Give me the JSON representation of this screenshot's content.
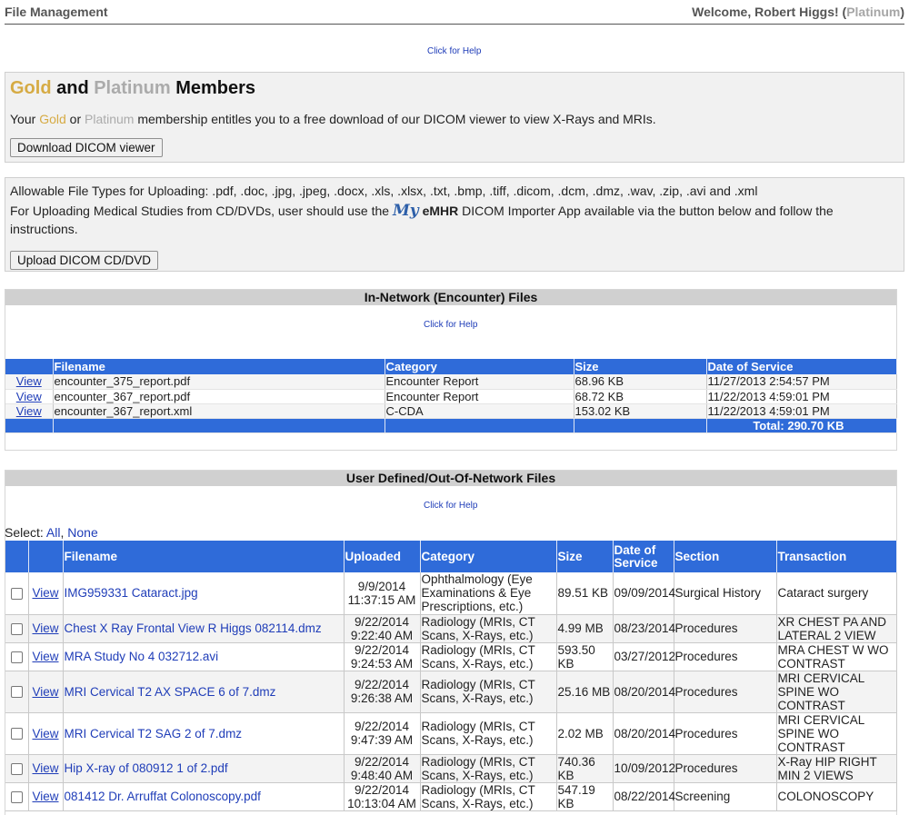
{
  "header": {
    "app_title": "File Management",
    "welcome_prefix": "Welcome, Robert Higgs! (",
    "tier": "Platinum",
    "welcome_suffix": ")"
  },
  "help_link": "Click for Help",
  "members": {
    "title_gold": "Gold",
    "title_and": " and ",
    "title_platinum": "Platinum",
    "title_members": " Members",
    "text_your": "Your ",
    "text_gold": "Gold",
    "text_or": " or ",
    "text_platinum": "Platinum",
    "text_rest": " membership entitles you to a free download of our DICOM viewer to view X-Rays and MRIs.",
    "download_button": "Download DICOM viewer"
  },
  "upload": {
    "allowable": "Allowable File Types for Uploading: .pdf, .doc, .jpg, .jpeg, .docx, .xls, .xlsx, .txt, .bmp, .tiff, .dicom, .dcm, .dmz, .wav, .zip, .avi and .xml",
    "cd_prefix": "For Uploading Medical Studies from CD/DVDs, user should use the ",
    "logo_my": "My",
    "logo_emhr": "eMHR",
    "cd_suffix": " DICOM Importer App available via the button below and follow the",
    "cd_line2": "instructions.",
    "upload_button": "Upload DICOM CD/DVD"
  },
  "encounter": {
    "header": "In-Network (Encounter) Files",
    "columns": {
      "filename": "Filename",
      "category": "Category",
      "size": "Size",
      "date": "Date of Service"
    },
    "view_label": "View",
    "rows": [
      {
        "filename": "encounter_375_report.pdf",
        "category": "Encounter Report",
        "size": "68.96 KB",
        "date": "11/27/2013 2:54:57 PM"
      },
      {
        "filename": "encounter_367_report.pdf",
        "category": "Encounter Report",
        "size": "68.72 KB",
        "date": "11/22/2013 4:59:01 PM"
      },
      {
        "filename": "encounter_367_report.xml",
        "category": "C-CDA",
        "size": "153.02 KB",
        "date": "11/22/2013 4:59:01 PM"
      }
    ],
    "total": "Total: 290.70 KB"
  },
  "user_files": {
    "header": "User Defined/Out-Of-Network Files",
    "select_label": "Select: ",
    "select_all": "All",
    "select_sep": ", ",
    "select_none": "None",
    "columns": {
      "filename": "Filename",
      "uploaded": "Uploaded",
      "category": "Category",
      "size": "Size",
      "date": "Date of Service",
      "section": "Section",
      "transaction": "Transaction"
    },
    "view_label": "View",
    "rows": [
      {
        "filename": "IMG959331 Cataract.jpg",
        "uploaded_date": "9/9/2014",
        "uploaded_time": "11:37:15 AM",
        "category": "Ophthalmology (Eye Examinations & Eye Prescriptions, etc.)",
        "size": "89.51 KB",
        "date": "09/09/2014",
        "section": "Surgical History",
        "transaction": "Cataract surgery"
      },
      {
        "filename": "Chest X Ray Frontal View R Higgs 082114.dmz",
        "uploaded_date": "9/22/2014",
        "uploaded_time": "9:22:40 AM",
        "category": "Radiology (MRIs, CT Scans, X-Rays, etc.)",
        "size": "4.99 MB",
        "date": "08/23/2014",
        "section": "Procedures",
        "transaction": "XR CHEST PA AND LATERAL 2 VIEW"
      },
      {
        "filename": "MRA Study No 4 032712.avi",
        "uploaded_date": "9/22/2014",
        "uploaded_time": "9:24:53 AM",
        "category": "Radiology (MRIs, CT Scans, X-Rays, etc.)",
        "size": "593.50 KB",
        "date": "03/27/2012",
        "section": "Procedures",
        "transaction": "MRA CHEST W WO CONTRAST"
      },
      {
        "filename": "MRI Cervical T2 AX SPACE 6 of 7.dmz",
        "uploaded_date": "9/22/2014",
        "uploaded_time": "9:26:38 AM",
        "category": "Radiology (MRIs, CT Scans, X-Rays, etc.)",
        "size": "25.16 MB",
        "date": "08/20/2014",
        "section": "Procedures",
        "transaction": "MRI CERVICAL SPINE WO CONTRAST"
      },
      {
        "filename": "MRI Cervical T2 SAG 2 of 7.dmz",
        "uploaded_date": "9/22/2014",
        "uploaded_time": "9:47:39 AM",
        "category": "Radiology (MRIs, CT Scans, X-Rays, etc.)",
        "size": "2.02 MB",
        "date": "08/20/2014",
        "section": "Procedures",
        "transaction": "MRI CERVICAL SPINE WO CONTRAST"
      },
      {
        "filename": "Hip X-ray of 080912 1 of 2.pdf",
        "uploaded_date": "9/22/2014",
        "uploaded_time": "9:48:40 AM",
        "category": "Radiology (MRIs, CT Scans, X-Rays, etc.)",
        "size": "740.36 KB",
        "date": "10/09/2012",
        "section": "Procedures",
        "transaction": "X-Ray HIP RIGHT MIN 2 VIEWS"
      },
      {
        "filename": "081412 Dr. Arruffat Colonoscopy.pdf",
        "uploaded_date": "9/22/2014",
        "uploaded_time": "10:13:04 AM",
        "category": "Radiology (MRIs, CT Scans, X-Rays, etc.)",
        "size": "547.19 KB",
        "date": "08/22/2014",
        "section": "Screening",
        "transaction": "COLONOSCOPY"
      }
    ]
  },
  "colors": {
    "header_blue": "#2f6bd9",
    "gold": "#d6ab44",
    "platinum": "#ababab",
    "link": "#1f3db8"
  }
}
